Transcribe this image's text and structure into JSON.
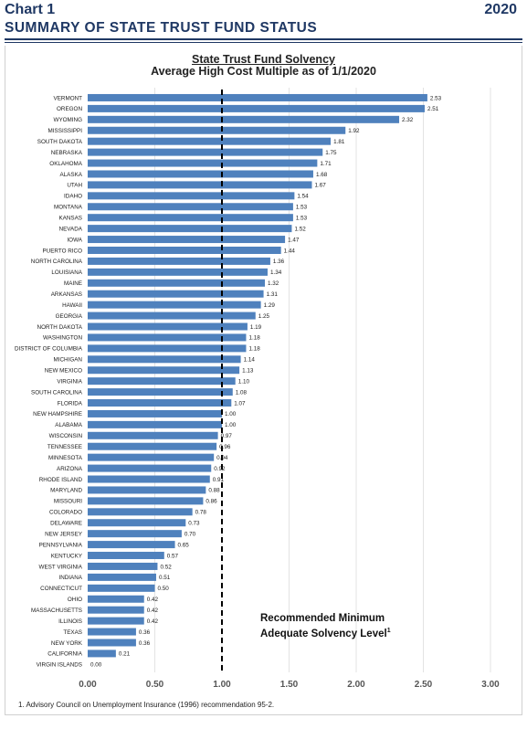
{
  "header": {
    "chart_label": "Chart 1",
    "year": "2020",
    "title": "SUMMARY OF STATE TRUST FUND STATUS"
  },
  "colors": {
    "bar": "#4f81bd",
    "ref_line": "#000000",
    "title": "#1f3864"
  },
  "chart_data": {
    "type": "bar",
    "orientation": "horizontal",
    "title": "State Trust Fund Solvency",
    "subtitle": "Average High Cost Multiple as of 1/1/2020",
    "categories": [
      "VERMONT",
      "OREGON",
      "WYOMING",
      "MISSISSIPPI",
      "SOUTH DAKOTA",
      "NEBRASKA",
      "OKLAHOMA",
      "ALASKA",
      "UTAH",
      "IDAHO",
      "MONTANA",
      "KANSAS",
      "NEVADA",
      "IOWA",
      "PUERTO RICO",
      "NORTH CAROLINA",
      "LOUISIANA",
      "MAINE",
      "ARKANSAS",
      "HAWAII",
      "GEORGIA",
      "NORTH DAKOTA",
      "WASHINGTON",
      "DISTRICT OF COLUMBIA",
      "MICHIGAN",
      "NEW MEXICO",
      "VIRGINIA",
      "SOUTH CAROLINA",
      "FLORIDA",
      "NEW HAMPSHIRE",
      "ALABAMA",
      "WISCONSIN",
      "TENNESSEE",
      "MINNESOTA",
      "ARIZONA",
      "RHODE ISLAND",
      "MARYLAND",
      "MISSOURI",
      "COLORADO",
      "DELAWARE",
      "NEW JERSEY",
      "PENNSYLVANIA",
      "KENTUCKY",
      "WEST VIRGINIA",
      "INDIANA",
      "CONNECTICUT",
      "OHIO",
      "MASSACHUSETTS",
      "ILLINOIS",
      "TEXAS",
      "NEW YORK",
      "CALIFORNIA",
      "VIRGIN ISLANDS"
    ],
    "values": [
      2.53,
      2.51,
      2.32,
      1.92,
      1.81,
      1.75,
      1.71,
      1.68,
      1.67,
      1.54,
      1.53,
      1.53,
      1.52,
      1.47,
      1.44,
      1.36,
      1.34,
      1.32,
      1.31,
      1.29,
      1.25,
      1.19,
      1.18,
      1.18,
      1.14,
      1.13,
      1.1,
      1.08,
      1.07,
      1.0,
      1.0,
      0.97,
      0.96,
      0.94,
      0.92,
      0.91,
      0.88,
      0.86,
      0.78,
      0.73,
      0.7,
      0.65,
      0.57,
      0.52,
      0.51,
      0.5,
      0.42,
      0.42,
      0.42,
      0.36,
      0.36,
      0.21,
      0.0
    ],
    "value_labels": [
      "2.53",
      "2.51",
      "2.32",
      "1.92",
      "1.81",
      "1.75",
      "1.71",
      "1.68",
      "1.67",
      "1.54",
      "1.53",
      "1.53",
      "1.52",
      "1.47",
      "1.44",
      "1.36",
      "1.34",
      "1.32",
      "1.31",
      "1.29",
      "1.25",
      "1.19",
      "1.18",
      "1.18",
      "1.14",
      "1.13",
      "1.10",
      "1.08",
      "1.07",
      "1.00",
      "1.00",
      "0.97",
      "0.96",
      "0.94",
      "0.92",
      "0.91",
      "0.88",
      "0.86",
      "0.78",
      "0.73",
      "0.70",
      "0.65",
      "0.57",
      "0.52",
      "0.51",
      "0.50",
      "0.42",
      "0.42",
      "0.42",
      "0.36",
      "0.36",
      "0.21",
      "0.00"
    ],
    "xlim": [
      0,
      3
    ],
    "x_ticks": [
      "0.00",
      "0.50",
      "1.00",
      "1.50",
      "2.00",
      "2.50",
      "3.00"
    ],
    "grid": true,
    "reference_line": {
      "value": 1.0,
      "style": "dashed"
    },
    "annotation_line1": "Recommended Minimum",
    "annotation_line2": "Adequate Solvency Level",
    "annotation_sup": "1"
  },
  "footnote": "1. Advisory Council on Unemployment Insurance (1996) recommendation 95-2."
}
